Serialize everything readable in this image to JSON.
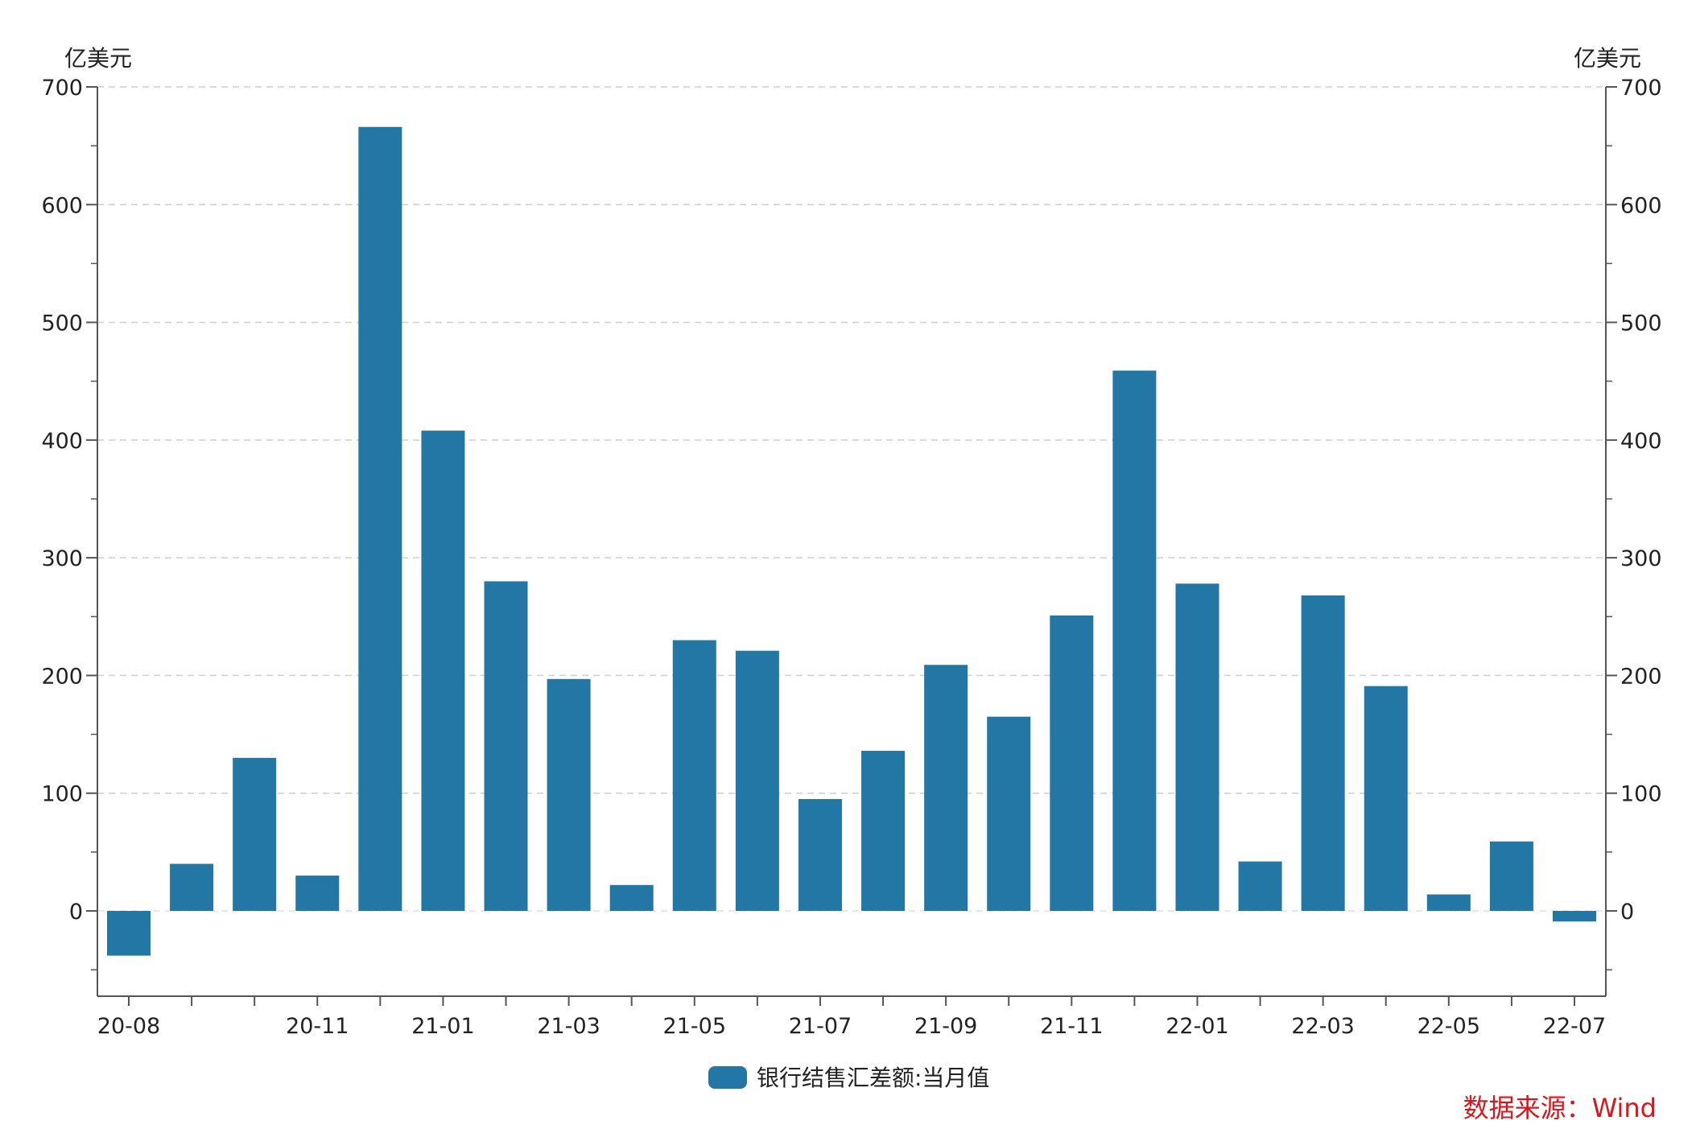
{
  "chart_data": {
    "type": "bar",
    "title": "",
    "unit_left": "亿美元",
    "unit_right": "亿美元",
    "categories": [
      "20-08",
      "20-09",
      "20-10",
      "20-11",
      "20-12",
      "21-01",
      "21-02",
      "21-03",
      "21-04",
      "21-05",
      "21-06",
      "21-07",
      "21-08",
      "21-09",
      "21-10",
      "21-11",
      "21-12",
      "22-01",
      "22-02",
      "22-03",
      "22-04",
      "22-05",
      "22-06",
      "22-07"
    ],
    "x_tick_labels": [
      "20-08",
      "",
      "",
      "20-11",
      "",
      "21-01",
      "",
      "21-03",
      "",
      "21-05",
      "",
      "21-07",
      "",
      "21-09",
      "",
      "21-11",
      "",
      "22-01",
      "",
      "22-03",
      "",
      "22-05",
      "",
      "22-07"
    ],
    "series": [
      {
        "name": "银行结售汇差额:当月值",
        "color": "#2377a4",
        "values": [
          -38,
          40,
          130,
          30,
          666,
          408,
          280,
          197,
          22,
          230,
          221,
          95,
          136,
          209,
          165,
          251,
          459,
          278,
          42,
          268,
          191,
          14,
          59,
          -9
        ]
      }
    ],
    "ylim": [
      -75,
      700
    ],
    "y_ticks": [
      0,
      100,
      200,
      300,
      400,
      500,
      600,
      700
    ],
    "y_tick_labels": [
      "0",
      "100",
      "200",
      "300",
      "400",
      "500",
      "600",
      "700"
    ],
    "grid": true,
    "legend_position": "bottom-center"
  },
  "source": "数据来源：Wind"
}
